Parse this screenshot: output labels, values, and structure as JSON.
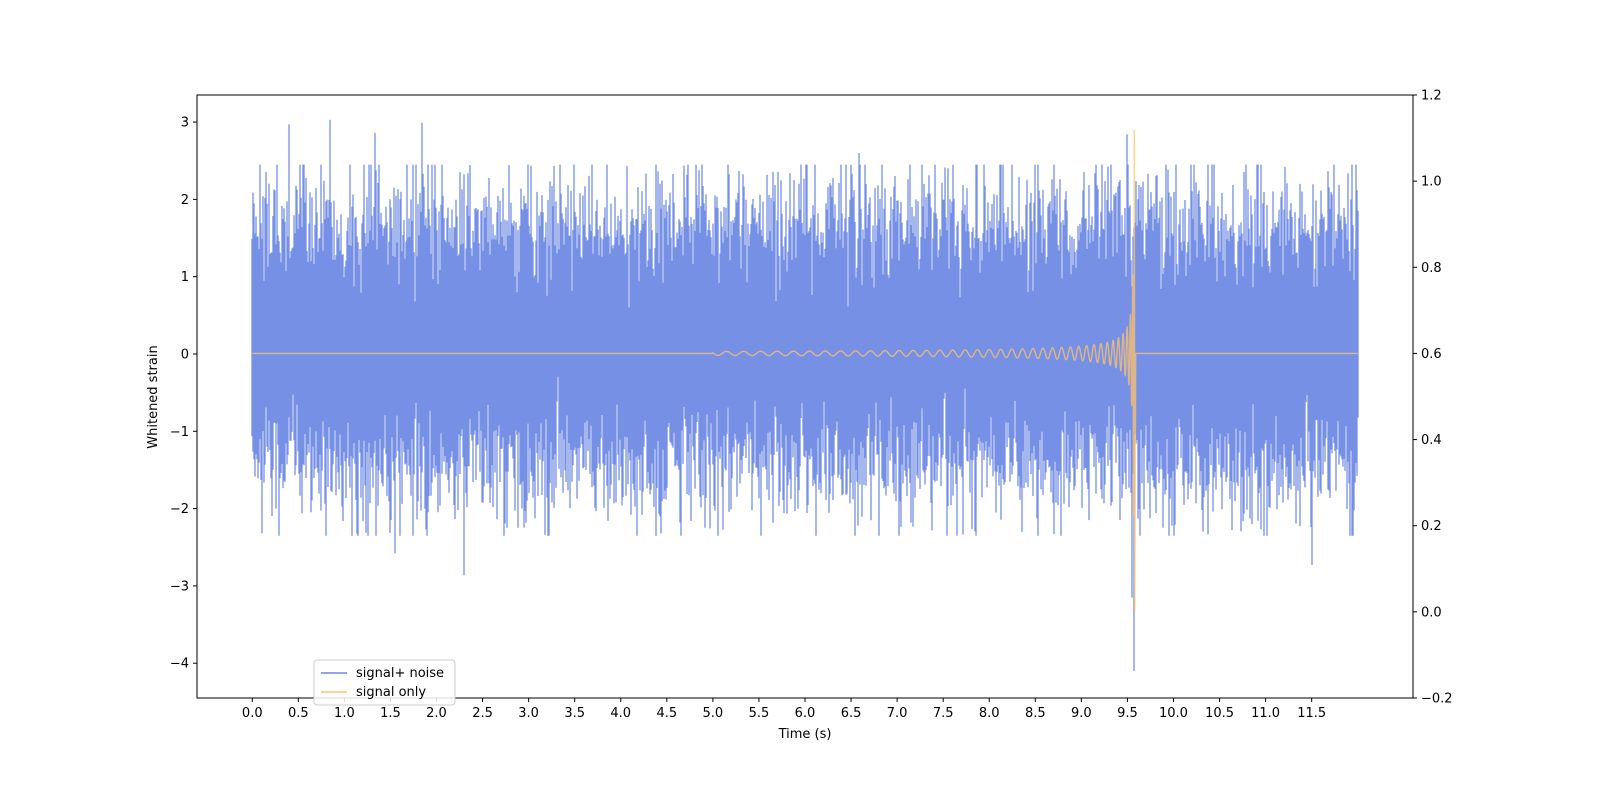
{
  "chart_data": {
    "type": "line",
    "xlabel": "Time (s)",
    "ylabel": "Whitened strain",
    "xlim": [
      -0.6,
      12.6
    ],
    "ylim": [
      -4.45,
      3.35
    ],
    "y2lim": [
      -0.2,
      1.2
    ],
    "x_ticks": [
      0.0,
      0.5,
      1.0,
      1.5,
      2.0,
      2.5,
      3.0,
      3.5,
      4.0,
      4.5,
      5.0,
      5.5,
      6.0,
      6.5,
      7.0,
      7.5,
      8.0,
      8.5,
      9.0,
      9.5,
      10.0,
      10.5,
      11.0,
      11.5
    ],
    "x_tick_labels": [
      "0.0",
      "0.5",
      "1.0",
      "1.5",
      "2.0",
      "2.5",
      "3.0",
      "3.5",
      "4.0",
      "4.5",
      "5.0",
      "5.5",
      "6.0",
      "6.5",
      "7.0",
      "7.5",
      "8.0",
      "8.5",
      "9.0",
      "9.5",
      "10.0",
      "10.5",
      "11.0",
      "11.5"
    ],
    "y_ticks": [
      3,
      2,
      1,
      0,
      -1,
      -2,
      -3,
      -4
    ],
    "y_tick_labels": [
      "3",
      "2",
      "1",
      "0",
      "−1",
      "−2",
      "−3",
      "−4"
    ],
    "y2_ticks": [
      1.2,
      1.0,
      0.8,
      0.6,
      0.4,
      0.2,
      0.0,
      -0.2
    ],
    "y2_tick_labels": [
      "1.2",
      "1.0",
      "0.8",
      "0.6",
      "0.4",
      "0.2",
      "0.0",
      "−0.2"
    ],
    "legend_position": "lower-left",
    "grid": false,
    "series": [
      {
        "name": "signal+ noise",
        "color": "#6a87e3",
        "x_range": [
          0.0,
          12.0
        ],
        "typical_range": [
          -1.4,
          1.6
        ],
        "peaks": [
          {
            "x": 0.4,
            "y": 2.97
          },
          {
            "x": 0.84,
            "y": 3.03
          },
          {
            "x": 1.33,
            "y": 2.86
          },
          {
            "x": 1.84,
            "y": 2.99
          },
          {
            "x": 1.55,
            "y": -2.58
          },
          {
            "x": 2.3,
            "y": -2.86
          },
          {
            "x": 6.59,
            "y": 2.6
          },
          {
            "x": 9.5,
            "y": 2.84
          },
          {
            "x": 9.55,
            "y": -3.15
          },
          {
            "x": 9.57,
            "y": -4.1
          },
          {
            "x": 11.5,
            "y": -2.73
          }
        ]
      },
      {
        "name": "signal only",
        "color": "#ffc36b",
        "axis": "right",
        "chirp_start": 5.0,
        "merger_time": 9.57,
        "max_y": 1.12,
        "min_y": 0.0
      }
    ]
  }
}
